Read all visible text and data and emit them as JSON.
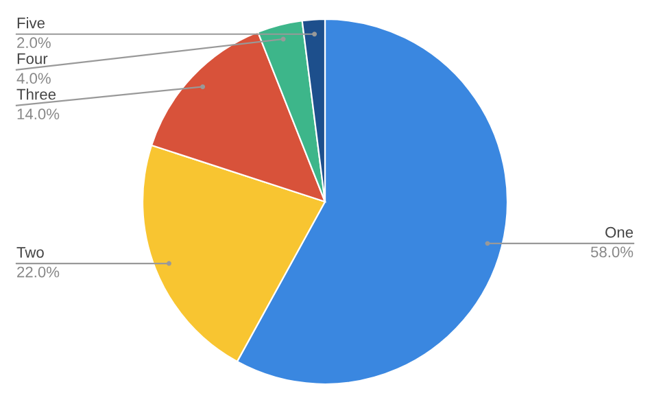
{
  "chart_data": {
    "type": "pie",
    "categories": [
      "One",
      "Two",
      "Three",
      "Four",
      "Five"
    ],
    "values": [
      58,
      22,
      14,
      4,
      2
    ],
    "value_labels": [
      "58.0%",
      "22.0%",
      "14.0%",
      "4.0%",
      "2.0%"
    ],
    "colors": [
      "#3a87e0",
      "#f8c531",
      "#d8523a",
      "#3db68a",
      "#1d4f8c"
    ],
    "legend": false
  }
}
